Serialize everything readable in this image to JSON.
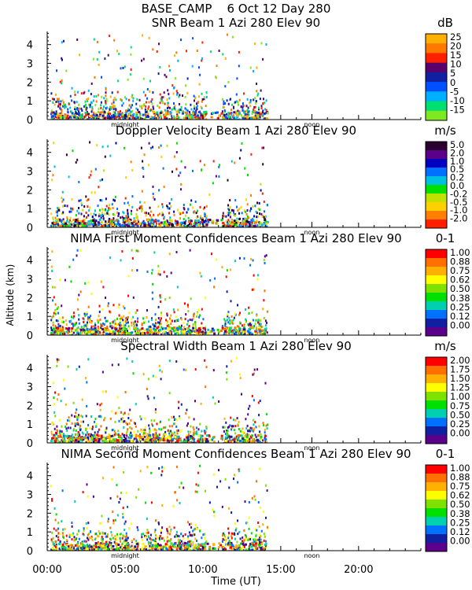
{
  "header": {
    "line1": "BASE_CAMP    6 Oct 12 Day 280"
  },
  "common": {
    "ylabel": "Altitude (km)",
    "xlabel": "Time (UT)",
    "x_ticks": [
      "00:00",
      "05:00",
      "10:00",
      "15:00",
      "20:00"
    ],
    "y_ticks": [
      "0",
      "1",
      "2",
      "3",
      "4"
    ],
    "midnight_label": "midnight",
    "noon_label": "noon"
  },
  "chart_data": [
    {
      "type": "heatmap",
      "title": "SNR Beam 1 Azi 280 Elev 90",
      "unit": "dB",
      "xlim_hours": [
        0,
        24
      ],
      "ylim_km": [
        0,
        4.7
      ],
      "data_extent_hours": [
        0.2,
        14.1
      ],
      "colorbar": {
        "labels": [
          "25",
          "20",
          "15",
          "10",
          "5",
          "0",
          "-5",
          "-10",
          "-15"
        ],
        "colors": [
          "#ffb000",
          "#ff7800",
          "#ff2000",
          "#5a006a",
          "#1020a0",
          "#0050ff",
          "#00b0ff",
          "#00e070",
          "#80e820"
        ]
      }
    },
    {
      "type": "heatmap",
      "title": "Doppler Velocity Beam 1 Azi 280 Elev 90",
      "unit": "m/s",
      "xlim_hours": [
        0,
        24
      ],
      "ylim_km": [
        0,
        4.7
      ],
      "data_extent_hours": [
        0.2,
        14.1
      ],
      "colorbar": {
        "labels": [
          "5.0",
          "2.0",
          "1.0",
          "0.5",
          "0.2",
          "0.0",
          "-0.2",
          "-0.5",
          "-1.0",
          "-2.0"
        ],
        "colors": [
          "#2a0030",
          "#5a008a",
          "#0000c0",
          "#0070ff",
          "#00c0e0",
          "#00e000",
          "#c0e000",
          "#ffd000",
          "#ff8000",
          "#ff2000"
        ]
      }
    },
    {
      "type": "heatmap",
      "title": "NIMA First Moment Confidences Beam 1 Azi 280 Elev 90",
      "unit": "0-1",
      "xlim_hours": [
        0,
        24
      ],
      "ylim_km": [
        0,
        4.7
      ],
      "data_extent_hours": [
        0.2,
        14.1
      ],
      "colorbar": {
        "labels": [
          "1.00",
          "0.88",
          "0.75",
          "0.62",
          "0.50",
          "0.38",
          "0.25",
          "0.12",
          "0.00"
        ],
        "colors": [
          "#ff0000",
          "#ff7000",
          "#ffb000",
          "#ffff00",
          "#80e000",
          "#00e000",
          "#00d0b0",
          "#0070ff",
          "#1020a0",
          "#5a008a"
        ]
      }
    },
    {
      "type": "heatmap",
      "title": "Spectral Width Beam 1 Azi 280 Elev 90",
      "unit": "m/s",
      "xlim_hours": [
        0,
        24
      ],
      "ylim_km": [
        0,
        4.7
      ],
      "data_extent_hours": [
        0.2,
        14.1
      ],
      "colorbar": {
        "labels": [
          "2.00",
          "1.75",
          "1.50",
          "1.25",
          "1.00",
          "0.75",
          "0.50",
          "0.25",
          "0.00"
        ],
        "colors": [
          "#ff0000",
          "#ff7000",
          "#ffb000",
          "#ffff00",
          "#80e000",
          "#00e000",
          "#00d0b0",
          "#0070ff",
          "#1020a0",
          "#5a008a"
        ]
      }
    },
    {
      "type": "heatmap",
      "title": "NIMA Second Moment Confidences Beam 1 Azi 280 Elev 90",
      "unit": "0-1",
      "xlim_hours": [
        0,
        24
      ],
      "ylim_km": [
        0,
        4.7
      ],
      "data_extent_hours": [
        0.2,
        14.1
      ],
      "colorbar": {
        "labels": [
          "1.00",
          "0.88",
          "0.75",
          "0.62",
          "0.50",
          "0.38",
          "0.25",
          "0.12",
          "0.00"
        ],
        "colors": [
          "#ff0000",
          "#ff7000",
          "#ffb000",
          "#ffff00",
          "#80e000",
          "#00e000",
          "#00d0b0",
          "#0070ff",
          "#1020a0",
          "#5a008a"
        ]
      }
    }
  ]
}
